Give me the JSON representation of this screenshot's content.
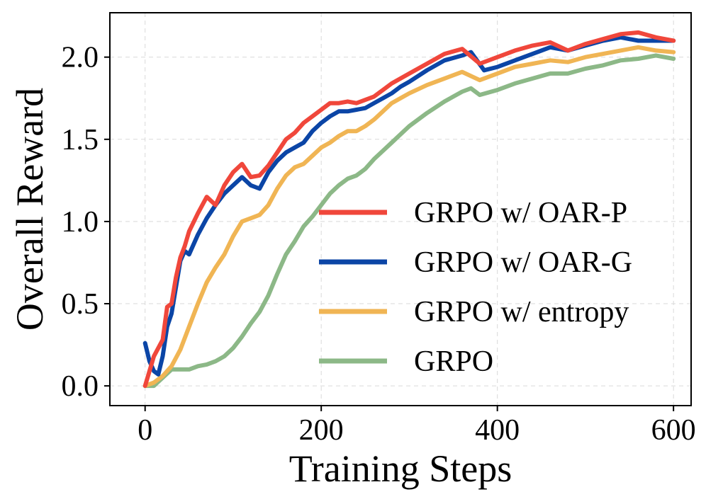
{
  "chart_data": {
    "type": "line",
    "title": "",
    "xlabel": "Training Steps",
    "ylabel": "Overall Reward",
    "xlim": [
      -40,
      620
    ],
    "ylim": [
      -0.12,
      2.27
    ],
    "xticks": [
      0,
      200,
      400,
      600
    ],
    "xtick_labels": [
      "0",
      "200",
      "400",
      "600"
    ],
    "yticks": [
      0.0,
      0.5,
      1.0,
      1.5,
      2.0
    ],
    "ytick_labels": [
      "0.0",
      "0.5",
      "1.0",
      "1.5",
      "2.0"
    ],
    "grid": true,
    "legend_position": "center-right",
    "series": [
      {
        "name": "GRPO w/ OAR-P",
        "color": "#f0473b",
        "x": [
          0,
          10,
          20,
          25,
          30,
          35,
          40,
          45,
          50,
          60,
          70,
          80,
          90,
          100,
          110,
          120,
          130,
          140,
          150,
          160,
          170,
          180,
          190,
          200,
          210,
          220,
          230,
          240,
          250,
          260,
          270,
          280,
          290,
          300,
          320,
          340,
          360,
          380,
          400,
          420,
          440,
          460,
          480,
          500,
          520,
          540,
          560,
          580,
          600
        ],
        "y": [
          0.0,
          0.18,
          0.28,
          0.48,
          0.5,
          0.66,
          0.78,
          0.85,
          0.94,
          1.05,
          1.15,
          1.1,
          1.22,
          1.3,
          1.35,
          1.27,
          1.28,
          1.34,
          1.42,
          1.5,
          1.54,
          1.6,
          1.64,
          1.68,
          1.72,
          1.72,
          1.73,
          1.72,
          1.74,
          1.76,
          1.8,
          1.84,
          1.87,
          1.9,
          1.96,
          2.02,
          2.05,
          1.96,
          2.0,
          2.04,
          2.07,
          2.09,
          2.04,
          2.08,
          2.11,
          2.14,
          2.15,
          2.12,
          2.1
        ]
      },
      {
        "name": "GRPO w/ OAR-G",
        "color": "#0b45a6",
        "x": [
          0,
          5,
          10,
          15,
          20,
          25,
          30,
          35,
          40,
          45,
          50,
          60,
          70,
          80,
          90,
          100,
          110,
          120,
          130,
          140,
          150,
          160,
          170,
          180,
          190,
          200,
          210,
          220,
          230,
          240,
          250,
          260,
          270,
          280,
          290,
          300,
          320,
          340,
          360,
          370,
          385,
          400,
          420,
          440,
          460,
          480,
          500,
          520,
          540,
          560,
          580,
          600
        ],
        "y": [
          0.26,
          0.15,
          0.09,
          0.07,
          0.18,
          0.36,
          0.44,
          0.6,
          0.76,
          0.82,
          0.8,
          0.92,
          1.02,
          1.1,
          1.17,
          1.22,
          1.27,
          1.22,
          1.2,
          1.3,
          1.37,
          1.42,
          1.45,
          1.48,
          1.55,
          1.6,
          1.64,
          1.67,
          1.67,
          1.68,
          1.69,
          1.72,
          1.75,
          1.78,
          1.82,
          1.85,
          1.92,
          1.98,
          2.01,
          2.03,
          1.92,
          1.94,
          1.98,
          2.02,
          2.06,
          2.04,
          2.07,
          2.1,
          2.12,
          2.1,
          2.1,
          2.1
        ]
      },
      {
        "name": "GRPO w/ entropy",
        "color": "#f0b554",
        "x": [
          0,
          10,
          20,
          30,
          40,
          50,
          60,
          70,
          80,
          90,
          100,
          110,
          120,
          130,
          140,
          150,
          160,
          170,
          180,
          190,
          200,
          210,
          220,
          230,
          240,
          250,
          260,
          270,
          280,
          290,
          300,
          320,
          340,
          360,
          380,
          400,
          420,
          440,
          460,
          480,
          500,
          520,
          540,
          560,
          580,
          600
        ],
        "y": [
          0.0,
          0.02,
          0.06,
          0.12,
          0.22,
          0.36,
          0.5,
          0.63,
          0.72,
          0.8,
          0.91,
          1.0,
          1.02,
          1.04,
          1.1,
          1.2,
          1.28,
          1.33,
          1.35,
          1.4,
          1.45,
          1.48,
          1.52,
          1.55,
          1.55,
          1.58,
          1.62,
          1.67,
          1.72,
          1.75,
          1.78,
          1.83,
          1.87,
          1.91,
          1.86,
          1.9,
          1.94,
          1.96,
          1.98,
          1.97,
          2.0,
          2.02,
          2.04,
          2.06,
          2.04,
          2.03
        ]
      },
      {
        "name": "GRPO",
        "color": "#8cb887",
        "x": [
          0,
          10,
          20,
          30,
          40,
          50,
          60,
          70,
          80,
          90,
          100,
          110,
          120,
          130,
          140,
          150,
          160,
          170,
          180,
          190,
          200,
          210,
          220,
          230,
          240,
          250,
          260,
          270,
          280,
          290,
          300,
          320,
          340,
          360,
          370,
          380,
          400,
          420,
          440,
          460,
          480,
          500,
          520,
          540,
          560,
          580,
          600
        ],
        "y": [
          0.0,
          0.0,
          0.05,
          0.1,
          0.1,
          0.1,
          0.12,
          0.13,
          0.15,
          0.18,
          0.23,
          0.3,
          0.38,
          0.45,
          0.55,
          0.68,
          0.8,
          0.88,
          0.97,
          1.03,
          1.1,
          1.17,
          1.22,
          1.26,
          1.28,
          1.32,
          1.38,
          1.43,
          1.48,
          1.53,
          1.58,
          1.66,
          1.73,
          1.79,
          1.81,
          1.77,
          1.8,
          1.84,
          1.87,
          1.9,
          1.9,
          1.93,
          1.95,
          1.98,
          1.99,
          2.01,
          1.99
        ]
      }
    ]
  }
}
